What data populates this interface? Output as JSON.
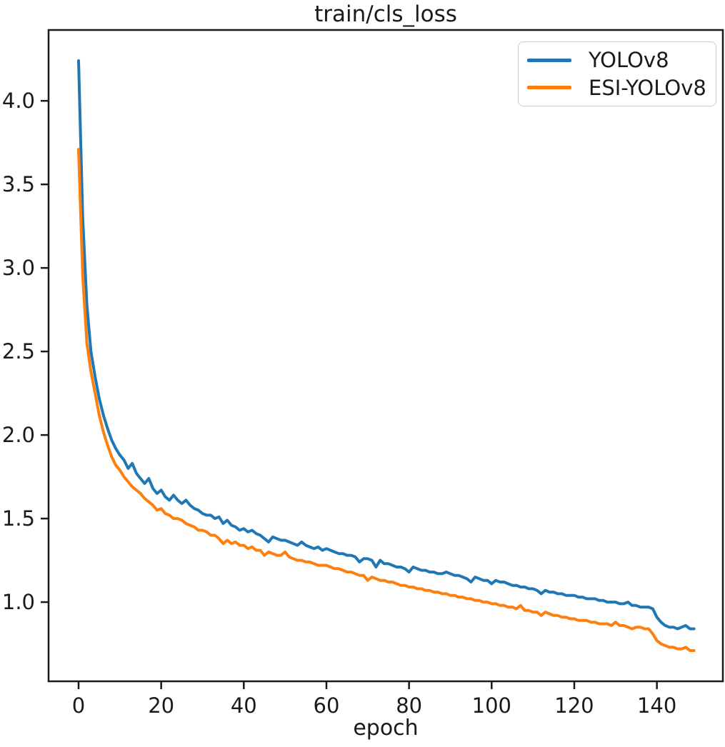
{
  "colors": {
    "axis": "#1a1a1a",
    "text": "#1a1a1a",
    "background": "#ffffff",
    "legend_border": "#cccccc"
  },
  "chart_data": {
    "type": "line",
    "title": "train/cls_loss",
    "xlabel": "epoch",
    "ylabel": "",
    "grid": false,
    "legend_position": "upper right",
    "xlim": [
      -7.26,
      155.97
    ],
    "ylim": [
      0.526,
      4.424
    ],
    "x_ticks": [
      0,
      20,
      40,
      60,
      80,
      100,
      120,
      140
    ],
    "y_ticks": [
      1.0,
      1.5,
      2.0,
      2.5,
      3.0,
      3.5,
      4.0
    ],
    "x_values": {
      "start": 0,
      "step": 1,
      "count": 150
    },
    "series": [
      {
        "name": "YOLOv8",
        "color": "#1f77b4",
        "values": [
          4.24,
          3.3,
          2.78,
          2.5,
          2.35,
          2.22,
          2.12,
          2.04,
          1.97,
          1.92,
          1.88,
          1.85,
          1.8,
          1.83,
          1.77,
          1.74,
          1.71,
          1.74,
          1.68,
          1.65,
          1.67,
          1.63,
          1.61,
          1.64,
          1.61,
          1.59,
          1.61,
          1.58,
          1.56,
          1.55,
          1.53,
          1.52,
          1.52,
          1.5,
          1.51,
          1.47,
          1.49,
          1.46,
          1.45,
          1.43,
          1.44,
          1.42,
          1.43,
          1.41,
          1.4,
          1.38,
          1.36,
          1.39,
          1.38,
          1.37,
          1.37,
          1.36,
          1.35,
          1.34,
          1.36,
          1.34,
          1.33,
          1.32,
          1.33,
          1.31,
          1.32,
          1.31,
          1.3,
          1.29,
          1.29,
          1.28,
          1.28,
          1.27,
          1.24,
          1.26,
          1.26,
          1.25,
          1.21,
          1.25,
          1.23,
          1.23,
          1.22,
          1.21,
          1.21,
          1.2,
          1.18,
          1.21,
          1.2,
          1.19,
          1.19,
          1.18,
          1.18,
          1.17,
          1.17,
          1.18,
          1.17,
          1.16,
          1.16,
          1.15,
          1.14,
          1.12,
          1.15,
          1.14,
          1.13,
          1.13,
          1.11,
          1.13,
          1.12,
          1.12,
          1.11,
          1.1,
          1.1,
          1.09,
          1.09,
          1.08,
          1.08,
          1.07,
          1.05,
          1.07,
          1.06,
          1.06,
          1.05,
          1.05,
          1.04,
          1.04,
          1.04,
          1.03,
          1.03,
          1.02,
          1.02,
          1.02,
          1.01,
          1.01,
          1.0,
          1.0,
          1.0,
          0.99,
          0.99,
          1.0,
          0.98,
          0.98,
          0.97,
          0.97,
          0.97,
          0.96,
          0.91,
          0.88,
          0.86,
          0.85,
          0.85,
          0.84,
          0.85,
          0.86,
          0.84,
          0.84
        ]
      },
      {
        "name": "ESI-YOLOv8",
        "color": "#ff7f0e",
        "values": [
          3.71,
          2.95,
          2.55,
          2.38,
          2.25,
          2.12,
          2.02,
          1.94,
          1.87,
          1.82,
          1.79,
          1.75,
          1.72,
          1.69,
          1.67,
          1.65,
          1.62,
          1.6,
          1.58,
          1.55,
          1.56,
          1.53,
          1.52,
          1.5,
          1.5,
          1.49,
          1.47,
          1.46,
          1.45,
          1.43,
          1.43,
          1.42,
          1.4,
          1.4,
          1.38,
          1.35,
          1.37,
          1.35,
          1.36,
          1.34,
          1.34,
          1.32,
          1.33,
          1.31,
          1.31,
          1.28,
          1.3,
          1.29,
          1.28,
          1.28,
          1.3,
          1.27,
          1.26,
          1.25,
          1.25,
          1.24,
          1.24,
          1.23,
          1.22,
          1.22,
          1.22,
          1.21,
          1.2,
          1.2,
          1.19,
          1.18,
          1.18,
          1.17,
          1.16,
          1.16,
          1.13,
          1.15,
          1.14,
          1.13,
          1.13,
          1.12,
          1.12,
          1.11,
          1.1,
          1.1,
          1.09,
          1.09,
          1.08,
          1.08,
          1.07,
          1.07,
          1.06,
          1.06,
          1.05,
          1.05,
          1.04,
          1.04,
          1.03,
          1.03,
          1.02,
          1.02,
          1.01,
          1.01,
          1.0,
          1.0,
          0.99,
          0.99,
          0.98,
          0.98,
          0.97,
          0.97,
          0.96,
          0.98,
          0.95,
          0.95,
          0.94,
          0.94,
          0.92,
          0.94,
          0.93,
          0.92,
          0.92,
          0.91,
          0.91,
          0.9,
          0.9,
          0.89,
          0.89,
          0.89,
          0.88,
          0.88,
          0.87,
          0.87,
          0.87,
          0.86,
          0.88,
          0.86,
          0.86,
          0.85,
          0.84,
          0.85,
          0.85,
          0.84,
          0.84,
          0.81,
          0.77,
          0.75,
          0.74,
          0.73,
          0.73,
          0.72,
          0.72,
          0.73,
          0.71,
          0.71
        ]
      }
    ]
  }
}
